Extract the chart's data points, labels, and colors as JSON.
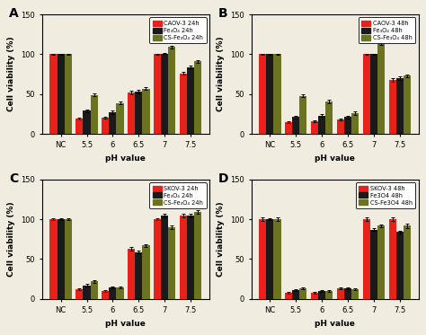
{
  "panels": [
    {
      "label": "A",
      "legend_labels": [
        "CAOV-3 24h",
        "Fe₃O₄ 24h",
        "CS-Fe₃O₄ 24h"
      ],
      "categories": [
        "NC",
        "5.5",
        "6",
        "6.5",
        "7",
        "7.5"
      ],
      "red_values": [
        100,
        19,
        20,
        52,
        100,
        76
      ],
      "black_values": [
        100,
        29,
        27,
        53,
        101,
        84
      ],
      "olive_values": [
        100,
        49,
        39,
        57,
        109,
        91
      ],
      "red_err": [
        1,
        1,
        1,
        2,
        1,
        2
      ],
      "black_err": [
        1,
        2,
        2,
        2,
        1,
        2
      ],
      "olive_err": [
        1,
        2,
        2,
        2,
        2,
        2
      ]
    },
    {
      "label": "B",
      "legend_labels": [
        "CAOV-3 48h",
        "Fe₃O₄ 48h",
        "CS-Fe₃O₄ 48h"
      ],
      "categories": [
        "NC",
        "5.5",
        "6",
        "6.5",
        "7",
        "7.5"
      ],
      "red_values": [
        100,
        15,
        16,
        18,
        100,
        68
      ],
      "black_values": [
        100,
        21,
        23,
        21,
        100,
        70
      ],
      "olive_values": [
        100,
        48,
        41,
        26,
        114,
        73
      ],
      "red_err": [
        1,
        1,
        1,
        1,
        1,
        2
      ],
      "black_err": [
        1,
        2,
        2,
        2,
        1,
        2
      ],
      "olive_err": [
        1,
        2,
        2,
        2,
        2,
        2
      ]
    },
    {
      "label": "C",
      "legend_labels": [
        "SKOV-3 24h",
        "Fe₃O₄ 24h",
        "CS-Fe₃O₄ 24h"
      ],
      "categories": [
        "NC",
        "5.5",
        "6",
        "6.5",
        "7",
        "7.5"
      ],
      "red_values": [
        100,
        12,
        10,
        63,
        100,
        105
      ],
      "black_values": [
        100,
        17,
        14,
        59,
        105,
        105
      ],
      "olive_values": [
        100,
        22,
        14,
        67,
        90,
        109
      ],
      "red_err": [
        1,
        1,
        1,
        2,
        1,
        2
      ],
      "black_err": [
        1,
        2,
        1,
        2,
        2,
        2
      ],
      "olive_err": [
        1,
        2,
        1,
        2,
        2,
        2
      ]
    },
    {
      "label": "D",
      "legend_labels": [
        "SKOV-3 48h",
        "Fe3O4 48h",
        "CS-Fe3O4 48h"
      ],
      "categories": [
        "NC",
        "5.5",
        "6",
        "6.5",
        "7",
        "7.5"
      ],
      "red_values": [
        100,
        8,
        8,
        13,
        100,
        100
      ],
      "black_values": [
        100,
        11,
        10,
        13,
        87,
        84
      ],
      "olive_values": [
        100,
        13,
        10,
        12,
        92,
        92
      ],
      "red_err": [
        2,
        1,
        1,
        1,
        2,
        2
      ],
      "black_err": [
        1,
        1,
        1,
        1,
        2,
        2
      ],
      "olive_err": [
        2,
        1,
        1,
        1,
        2,
        3
      ]
    }
  ],
  "colors": {
    "red": "#e8221a",
    "black": "#1a1a1a",
    "olive": "#6b7320"
  },
  "ylabel": "Cell viability (%)",
  "xlabel": "pH value",
  "ylim": [
    0,
    150
  ],
  "yticks": [
    0,
    50,
    100,
    150
  ],
  "bg_color": "#f0ece0"
}
